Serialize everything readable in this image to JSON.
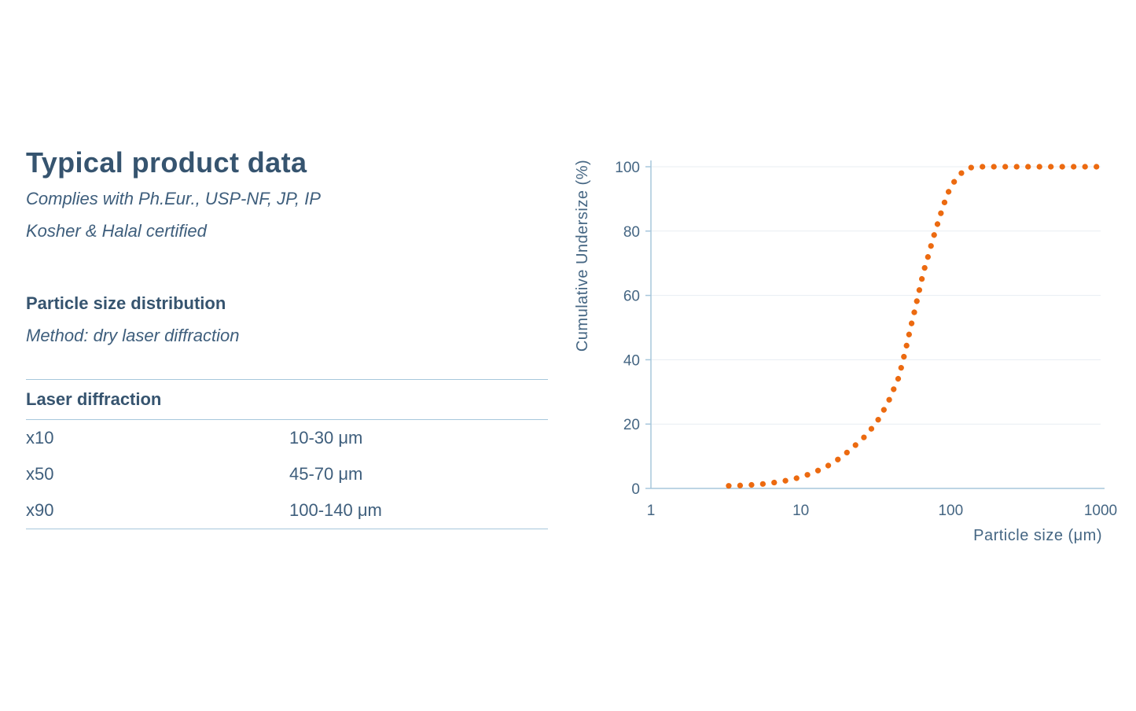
{
  "page": {
    "title": "Typical product data",
    "compliance_line1": "Complies with Ph.Eur., USP-NF, JP, IP",
    "compliance_line2": "Kosher & Halal certified",
    "section_heading": "Particle size distribution",
    "method_line": "Method: dry laser diffraction"
  },
  "table": {
    "header": "Laser diffraction",
    "rows": [
      {
        "label": "x10",
        "value": "10-30 μm"
      },
      {
        "label": "x50",
        "value": "45-70 μm"
      },
      {
        "label": "x90",
        "value": "100-140 μm"
      }
    ]
  },
  "colors": {
    "heading_text": "#36546F",
    "body_text": "#3E5E7C",
    "axis_text": "#456683",
    "accent_orange": "#EC6A10",
    "rule_blue": "#A7C7DC",
    "gridline": "#E8EDF2"
  },
  "chart_data": {
    "type": "scatter",
    "title": "",
    "xlabel": "Particle size (μm)",
    "ylabel": "Cumulative Undersize (%)",
    "x_scale": "log",
    "xlim": [
      1,
      1000
    ],
    "ylim": [
      0,
      100
    ],
    "x_ticks": [
      1,
      10,
      100,
      1000
    ],
    "y_ticks": [
      0,
      20,
      40,
      60,
      80,
      100
    ],
    "grid": "horizontal",
    "legend": "none",
    "marker_style": "orange dots spaced evenly along curve",
    "curve_points": [
      [
        3.3,
        0.8
      ],
      [
        3.9,
        0.9
      ],
      [
        4.7,
        1.1
      ],
      [
        5.6,
        1.4
      ],
      [
        6.6,
        1.8
      ],
      [
        7.9,
        2.4
      ],
      [
        9.4,
        3.2
      ],
      [
        11.2,
        4.3
      ],
      [
        13.4,
        5.8
      ],
      [
        16,
        7.6
      ],
      [
        19,
        10
      ],
      [
        22.6,
        13
      ],
      [
        27,
        16.3
      ],
      [
        32,
        20.5
      ],
      [
        38,
        26.5
      ],
      [
        45,
        34.5
      ],
      [
        50,
        43
      ],
      [
        54,
        50
      ],
      [
        58,
        56
      ],
      [
        62,
        62
      ],
      [
        66,
        67.5
      ],
      [
        71,
        72.5
      ],
      [
        76,
        77.5
      ],
      [
        82,
        82.5
      ],
      [
        88,
        87
      ],
      [
        95,
        91.5
      ],
      [
        103,
        94.7
      ],
      [
        112,
        97
      ],
      [
        122,
        98.7
      ],
      [
        133,
        99.6
      ],
      [
        145,
        100
      ],
      [
        1000,
        100
      ]
    ]
  }
}
